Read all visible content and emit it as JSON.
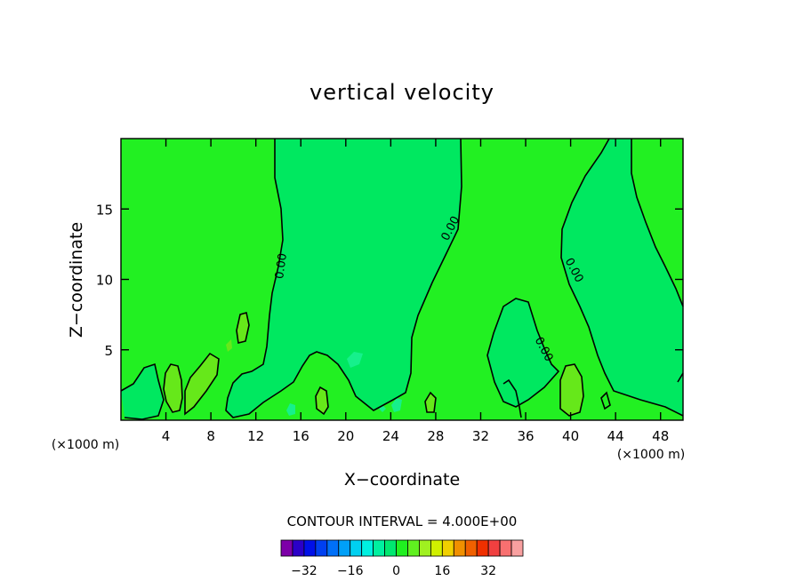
{
  "chart_data": {
    "type": "contour",
    "title": "vertical velocity",
    "xlabel": "X−coordinate",
    "ylabel": "Z−coordinate",
    "x_unit_left": "(×1000 m)",
    "x_unit_right": "(×1000 m)",
    "xlim": [
      0,
      50
    ],
    "ylim": [
      0,
      20
    ],
    "x_ticks": [
      4,
      8,
      12,
      16,
      20,
      24,
      28,
      32,
      36,
      40,
      44,
      48
    ],
    "y_ticks": [
      5,
      10,
      15
    ],
    "contour_interval_text": "CONTOUR INTERVAL = 4.000E+00",
    "contour_labels": [
      "0.00",
      "0.00",
      "0.00",
      "0.00"
    ],
    "colorbar": {
      "colors": [
        "#7d00a8",
        "#2b00c8",
        "#0010e8",
        "#0040f0",
        "#0070f8",
        "#00a0f8",
        "#00d0f0",
        "#00f0e0",
        "#00f0a0",
        "#00e870",
        "#20f020",
        "#60f020",
        "#a0f020",
        "#d0f000",
        "#f0d000",
        "#f09000",
        "#f06000",
        "#f03000",
        "#f04040",
        "#f87070",
        "#f8a0a0"
      ],
      "tick_labels": [
        "−32",
        "−16",
        "0",
        "16",
        "32"
      ],
      "tick_values": [
        -32,
        -16,
        0,
        16,
        32
      ]
    },
    "fill_colors": {
      "positive": "#22f022",
      "negative": "#00e860",
      "strong_positive": "#66e81a",
      "weak_negative": "#16f08c"
    }
  }
}
